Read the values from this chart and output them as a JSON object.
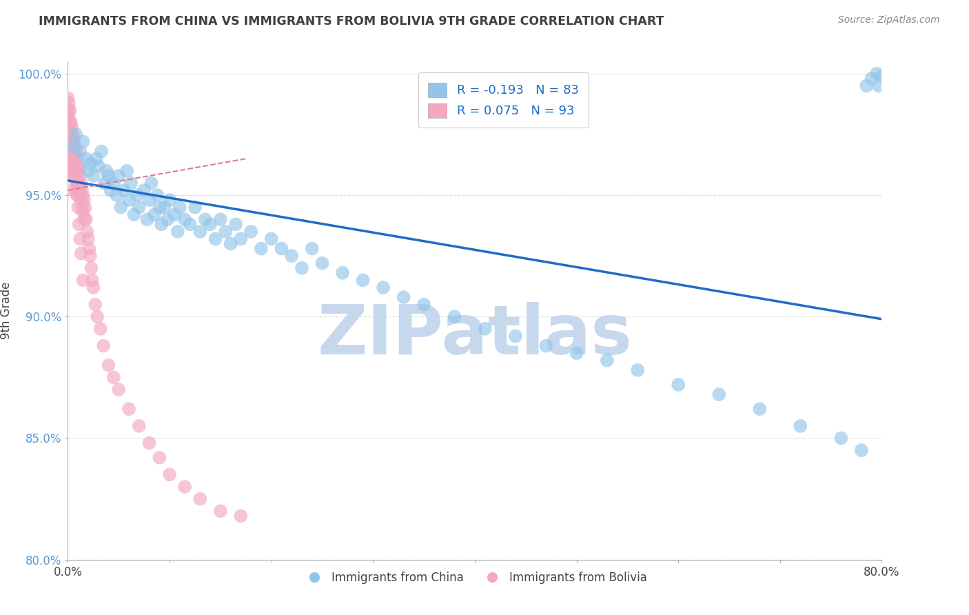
{
  "title": "IMMIGRANTS FROM CHINA VS IMMIGRANTS FROM BOLIVIA 9TH GRADE CORRELATION CHART",
  "source": "Source: ZipAtlas.com",
  "xlabel_china": "Immigrants from China",
  "xlabel_bolivia": "Immigrants from Bolivia",
  "ylabel": "9th Grade",
  "xlim": [
    0.0,
    0.8
  ],
  "ylim": [
    0.8,
    1.005
  ],
  "xticks": [
    0.0,
    0.1,
    0.2,
    0.3,
    0.4,
    0.5,
    0.6,
    0.7,
    0.8
  ],
  "xticklabels": [
    "0.0%",
    "",
    "",
    "",
    "",
    "",
    "",
    "",
    "80.0%"
  ],
  "yticks": [
    0.8,
    0.85,
    0.9,
    0.95,
    1.0
  ],
  "yticklabels": [
    "80.0%",
    "85.0%",
    "90.0%",
    "95.0%",
    "100.0%"
  ],
  "china_R": -0.193,
  "china_N": 83,
  "bolivia_R": 0.075,
  "bolivia_N": 93,
  "china_color": "#92C5E8",
  "bolivia_color": "#F4A8C0",
  "china_line_color": "#1F6CC8",
  "bolivia_line_color": "#E07890",
  "watermark_text": "ZIPatlas",
  "watermark_color": "#C8D8EC",
  "background_color": "#FFFFFF",
  "grid_color": "#DDDDDD",
  "title_color": "#404040",
  "china_line_x0": 0.0,
  "china_line_x1": 0.8,
  "china_line_y0": 0.956,
  "china_line_y1": 0.899,
  "bolivia_line_x0": 0.0,
  "bolivia_line_x1": 0.175,
  "bolivia_line_y0": 0.952,
  "bolivia_line_y1": 0.965,
  "china_scatter_x": [
    0.005,
    0.008,
    0.012,
    0.015,
    0.018,
    0.02,
    0.022,
    0.025,
    0.028,
    0.03,
    0.033,
    0.036,
    0.038,
    0.04,
    0.042,
    0.045,
    0.048,
    0.05,
    0.052,
    0.055,
    0.058,
    0.06,
    0.062,
    0.065,
    0.068,
    0.07,
    0.075,
    0.078,
    0.08,
    0.082,
    0.085,
    0.088,
    0.09,
    0.092,
    0.095,
    0.098,
    0.1,
    0.105,
    0.108,
    0.11,
    0.115,
    0.12,
    0.125,
    0.13,
    0.135,
    0.14,
    0.145,
    0.15,
    0.155,
    0.16,
    0.165,
    0.17,
    0.18,
    0.19,
    0.2,
    0.21,
    0.22,
    0.23,
    0.24,
    0.25,
    0.27,
    0.29,
    0.31,
    0.33,
    0.35,
    0.38,
    0.41,
    0.44,
    0.47,
    0.5,
    0.53,
    0.56,
    0.6,
    0.64,
    0.68,
    0.72,
    0.76,
    0.78,
    0.785,
    0.79,
    0.795,
    0.797,
    0.8
  ],
  "china_scatter_y": [
    0.97,
    0.975,
    0.968,
    0.972,
    0.965,
    0.96,
    0.963,
    0.958,
    0.965,
    0.962,
    0.968,
    0.955,
    0.96,
    0.958,
    0.952,
    0.955,
    0.95,
    0.958,
    0.945,
    0.952,
    0.96,
    0.948,
    0.955,
    0.942,
    0.95,
    0.945,
    0.952,
    0.94,
    0.948,
    0.955,
    0.942,
    0.95,
    0.945,
    0.938,
    0.945,
    0.94,
    0.948,
    0.942,
    0.935,
    0.945,
    0.94,
    0.938,
    0.945,
    0.935,
    0.94,
    0.938,
    0.932,
    0.94,
    0.935,
    0.93,
    0.938,
    0.932,
    0.935,
    0.928,
    0.932,
    0.928,
    0.925,
    0.92,
    0.928,
    0.922,
    0.918,
    0.915,
    0.912,
    0.908,
    0.905,
    0.9,
    0.895,
    0.892,
    0.888,
    0.885,
    0.882,
    0.878,
    0.872,
    0.868,
    0.862,
    0.855,
    0.85,
    0.845,
    0.995,
    0.998,
    1.0,
    0.995,
    0.999
  ],
  "bolivia_scatter_x": [
    0.0,
    0.0,
    0.0,
    0.0,
    0.0,
    0.0,
    0.001,
    0.001,
    0.001,
    0.001,
    0.001,
    0.002,
    0.002,
    0.002,
    0.002,
    0.002,
    0.003,
    0.003,
    0.003,
    0.003,
    0.004,
    0.004,
    0.004,
    0.004,
    0.005,
    0.005,
    0.005,
    0.005,
    0.006,
    0.006,
    0.006,
    0.007,
    0.007,
    0.007,
    0.008,
    0.008,
    0.008,
    0.009,
    0.009,
    0.009,
    0.01,
    0.01,
    0.01,
    0.011,
    0.011,
    0.012,
    0.012,
    0.013,
    0.013,
    0.014,
    0.014,
    0.015,
    0.015,
    0.016,
    0.016,
    0.017,
    0.018,
    0.019,
    0.02,
    0.021,
    0.022,
    0.023,
    0.024,
    0.025,
    0.027,
    0.029,
    0.032,
    0.035,
    0.04,
    0.045,
    0.05,
    0.06,
    0.07,
    0.08,
    0.09,
    0.1,
    0.115,
    0.13,
    0.15,
    0.17,
    0.008,
    0.009,
    0.01,
    0.011,
    0.012,
    0.013,
    0.015,
    0.002,
    0.003,
    0.004,
    0.005,
    0.001,
    0.002
  ],
  "bolivia_scatter_y": [
    0.99,
    0.985,
    0.98,
    0.975,
    0.97,
    0.965,
    0.988,
    0.982,
    0.975,
    0.97,
    0.965,
    0.985,
    0.978,
    0.972,
    0.968,
    0.962,
    0.98,
    0.975,
    0.968,
    0.962,
    0.978,
    0.972,
    0.965,
    0.96,
    0.975,
    0.968,
    0.962,
    0.958,
    0.972,
    0.965,
    0.96,
    0.97,
    0.963,
    0.957,
    0.968,
    0.962,
    0.955,
    0.965,
    0.96,
    0.952,
    0.962,
    0.955,
    0.95,
    0.96,
    0.953,
    0.958,
    0.95,
    0.955,
    0.948,
    0.952,
    0.945,
    0.95,
    0.943,
    0.948,
    0.94,
    0.945,
    0.94,
    0.935,
    0.932,
    0.928,
    0.925,
    0.92,
    0.915,
    0.912,
    0.905,
    0.9,
    0.895,
    0.888,
    0.88,
    0.875,
    0.87,
    0.862,
    0.855,
    0.848,
    0.842,
    0.835,
    0.83,
    0.825,
    0.82,
    0.818,
    0.958,
    0.95,
    0.945,
    0.938,
    0.932,
    0.926,
    0.915,
    0.972,
    0.965,
    0.96,
    0.952,
    0.985,
    0.98
  ]
}
